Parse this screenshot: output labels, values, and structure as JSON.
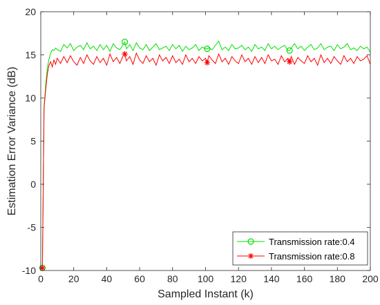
{
  "chart_data": {
    "type": "line",
    "xlabel": "Sampled Instant (k)",
    "ylabel": "Estimation Error Variance (dB)",
    "xlim": [
      0,
      200
    ],
    "ylim": [
      -10,
      20
    ],
    "xticks": [
      0,
      20,
      40,
      60,
      80,
      100,
      120,
      140,
      160,
      180,
      200
    ],
    "yticks": [
      -10,
      -5,
      0,
      5,
      10,
      15,
      20
    ],
    "grid": false,
    "legend_position": "bottom-right",
    "series": [
      {
        "name": "Transmission rate:0.4",
        "color": "#00e000",
        "marker": "circle",
        "marker_x": [
          1,
          51,
          101,
          151
        ],
        "x": [
          1,
          2,
          3,
          4,
          5,
          6,
          7,
          8,
          9,
          10,
          12,
          14,
          16,
          18,
          20,
          22,
          24,
          26,
          28,
          30,
          32,
          34,
          36,
          38,
          40,
          42,
          44,
          46,
          48,
          50,
          51,
          52,
          54,
          56,
          58,
          60,
          62,
          64,
          66,
          68,
          70,
          72,
          74,
          76,
          78,
          80,
          82,
          84,
          86,
          88,
          90,
          92,
          94,
          96,
          98,
          100,
          101,
          102,
          104,
          106,
          108,
          110,
          112,
          114,
          116,
          118,
          120,
          122,
          124,
          126,
          128,
          130,
          132,
          134,
          136,
          138,
          140,
          142,
          144,
          146,
          148,
          150,
          151,
          152,
          154,
          156,
          158,
          160,
          162,
          164,
          166,
          168,
          170,
          172,
          174,
          176,
          178,
          180,
          182,
          184,
          186,
          188,
          190,
          192,
          194,
          196,
          198,
          200
        ],
        "y": [
          -9.7,
          9,
          11.5,
          13.5,
          14.5,
          15.2,
          15.6,
          15.5,
          15.8,
          15.6,
          15.4,
          16.2,
          15.8,
          16.3,
          15.5,
          15.9,
          16.1,
          15.6,
          16.4,
          15.7,
          16.0,
          15.5,
          16.2,
          15.6,
          16.1,
          15.4,
          16.3,
          15.8,
          15.6,
          16.2,
          16.5,
          15.7,
          16.2,
          15.5,
          16.4,
          15.8,
          15.6,
          16.2,
          15.5,
          15.9,
          16.3,
          15.6,
          15.8,
          16.0,
          15.5,
          16.2,
          15.7,
          16.1,
          15.4,
          16.0,
          15.6,
          15.8,
          16.2,
          15.5,
          15.9,
          15.7,
          15.7,
          15.8,
          15.6,
          16.1,
          16.6,
          15.6,
          15.9,
          15.5,
          16.2,
          15.7,
          15.8,
          16.1,
          15.6,
          15.9,
          15.4,
          16.2,
          15.7,
          15.9,
          15.5,
          16.3,
          15.7,
          16.0,
          15.6,
          15.9,
          16.1,
          15.5,
          15.5,
          15.8,
          16.3,
          15.7,
          16.0,
          15.5,
          15.9,
          16.2,
          15.6,
          15.8,
          16.3,
          15.6,
          15.9,
          16.0,
          15.5,
          16.2,
          15.7,
          15.9,
          16.3,
          15.6,
          15.8,
          15.5,
          16.0,
          15.7,
          15.9,
          15.3
        ]
      },
      {
        "name": "Transmission rate:0.8",
        "color": "#ff0000",
        "marker": "asterisk",
        "marker_x": [
          1,
          51,
          101,
          151
        ],
        "x": [
          1,
          2,
          3,
          4,
          5,
          6,
          7,
          8,
          9,
          10,
          12,
          14,
          16,
          18,
          20,
          22,
          24,
          26,
          28,
          30,
          32,
          34,
          36,
          38,
          40,
          42,
          44,
          46,
          48,
          50,
          51,
          52,
          54,
          56,
          58,
          60,
          62,
          64,
          66,
          68,
          70,
          72,
          74,
          76,
          78,
          80,
          82,
          84,
          86,
          88,
          90,
          92,
          94,
          96,
          98,
          100,
          101,
          102,
          104,
          106,
          108,
          110,
          112,
          114,
          116,
          118,
          120,
          122,
          124,
          126,
          128,
          130,
          132,
          134,
          136,
          138,
          140,
          142,
          144,
          146,
          148,
          150,
          151,
          152,
          154,
          156,
          158,
          160,
          162,
          164,
          166,
          168,
          170,
          172,
          174,
          176,
          178,
          180,
          182,
          184,
          186,
          188,
          190,
          192,
          194,
          196,
          198,
          200
        ],
        "y": [
          -9.7,
          8.8,
          11.0,
          12.8,
          13.8,
          14.2,
          13.6,
          14.4,
          13.9,
          14.6,
          14.0,
          14.8,
          14.1,
          14.9,
          14.2,
          13.8,
          14.7,
          14.0,
          15.0,
          14.3,
          13.9,
          14.8,
          14.1,
          14.6,
          13.8,
          15.1,
          14.2,
          14.7,
          14.0,
          14.9,
          15.1,
          14.3,
          14.8,
          13.9,
          15.2,
          14.4,
          14.0,
          14.9,
          14.2,
          14.6,
          13.8,
          15.0,
          14.3,
          14.7,
          14.0,
          14.9,
          14.1,
          14.5,
          13.9,
          15.0,
          14.2,
          14.6,
          14.0,
          14.8,
          14.3,
          14.6,
          14.1,
          14.9,
          14.4,
          14.0,
          15.1,
          14.2,
          14.6,
          13.9,
          14.8,
          14.3,
          14.0,
          15.0,
          14.2,
          14.6,
          13.9,
          14.8,
          14.1,
          14.7,
          14.0,
          15.0,
          14.3,
          14.5,
          13.9,
          14.9,
          14.2,
          14.6,
          14.2,
          14.8,
          13.9,
          14.7,
          14.3,
          14.0,
          14.9,
          14.2,
          14.6,
          13.8,
          15.0,
          14.1,
          14.6,
          14.0,
          14.8,
          14.3,
          13.9,
          14.9,
          14.2,
          14.6,
          14.0,
          14.8,
          14.3,
          14.5,
          14.9,
          13.9
        ]
      }
    ]
  }
}
